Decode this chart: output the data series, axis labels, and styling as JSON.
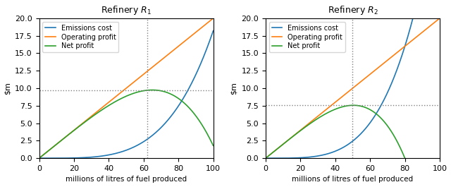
{
  "title1": "Refinery $R_1$",
  "title2": "Refinery $R_2$",
  "xlabel": "millions of litres of fuel produced",
  "ylabel": "$m",
  "xlim": [
    0,
    100
  ],
  "ylim": [
    0,
    20
  ],
  "legend_labels": [
    "Emissions cost",
    "Operating profit",
    "Net profit"
  ],
  "colors": [
    "#1f77b4",
    "#ff7f0e",
    "#2ca02c"
  ],
  "r1": {
    "op_slope": 0.2,
    "em_power": 4,
    "vline": 62,
    "hline": 9.5
  },
  "r2": {
    "op_slope": 0.2,
    "em_power": 4,
    "vline": 50,
    "hline": 7.8
  },
  "figsize": [
    6.4,
    2.65
  ],
  "dpi": 100
}
